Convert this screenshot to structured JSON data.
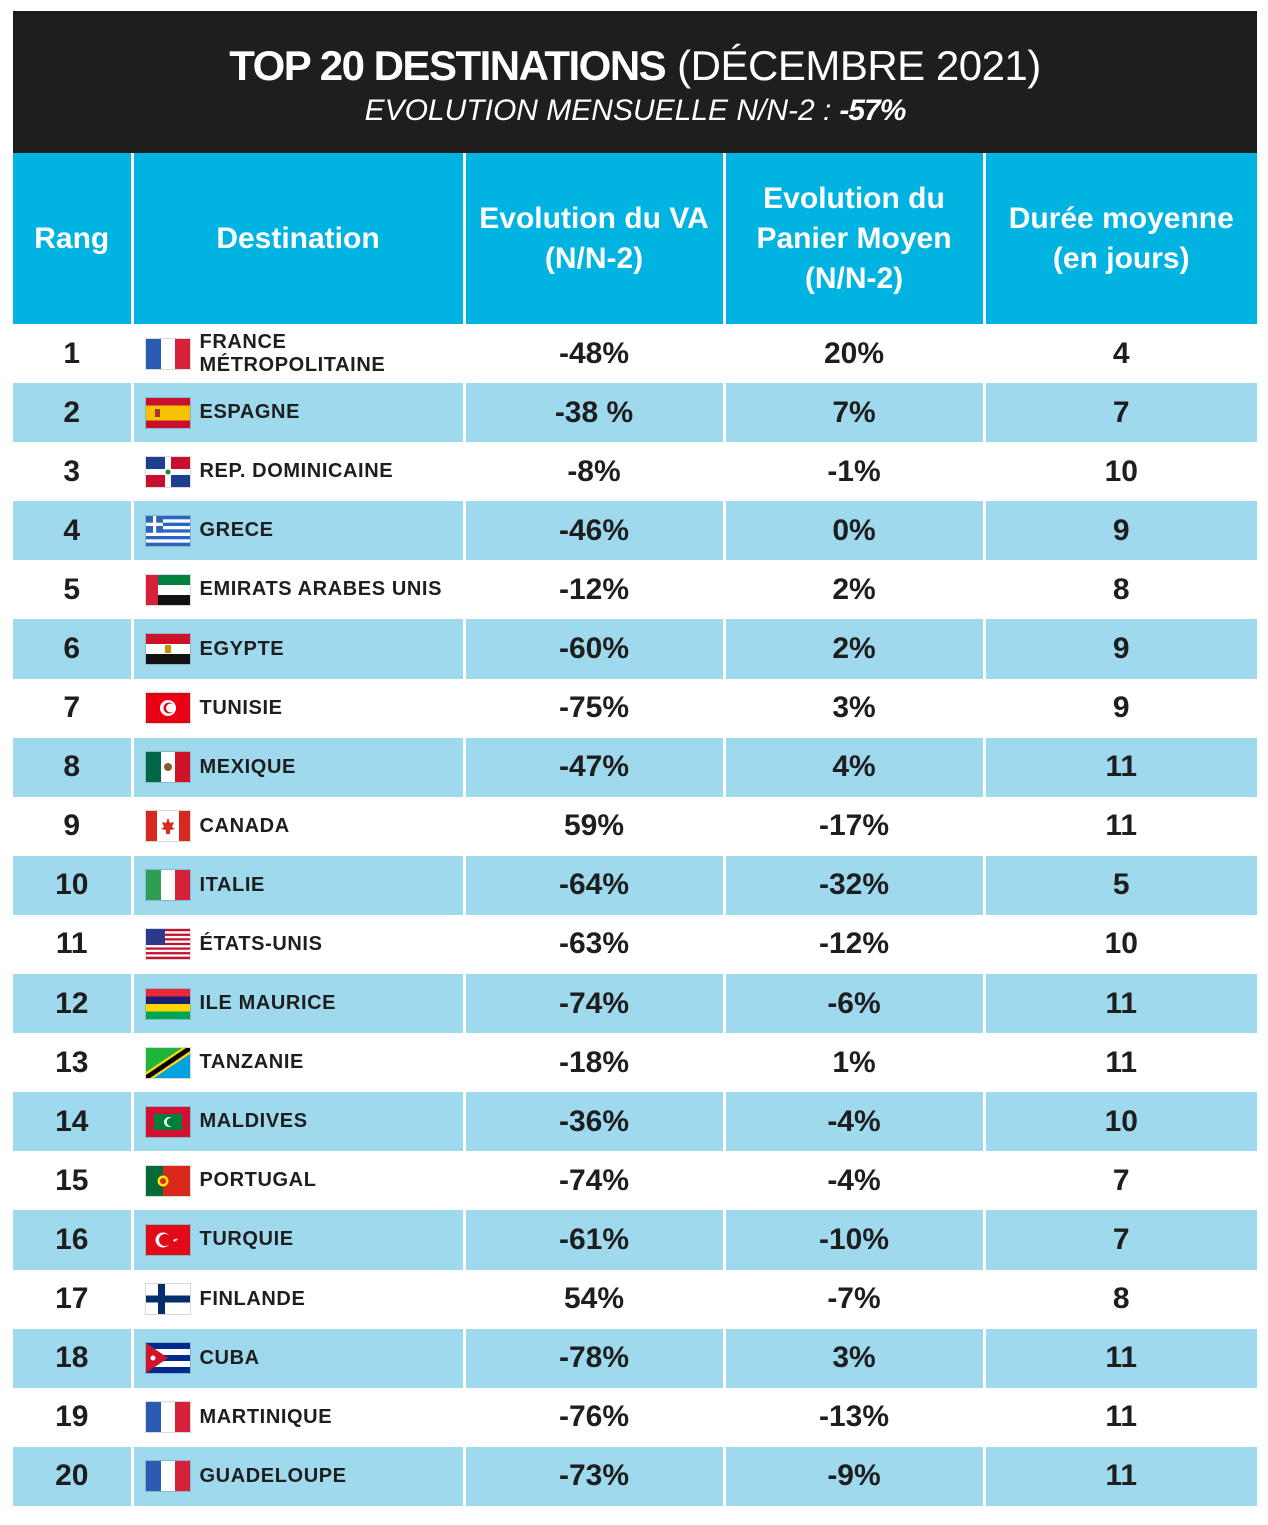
{
  "header": {
    "title_bold": "TOP 20 DESTINATIONS",
    "title_light": "(DÉCEMBRE 2021)",
    "subtitle_label": "EVOLUTION MENSUELLE N/N-2 :",
    "subtitle_value": "-57%"
  },
  "chart_data": {
    "type": "table",
    "columns": [
      "Rang",
      "Destination",
      "Evolution du VA (N/N-2)",
      "Evolution du Panier Moyen (N/N-2)",
      "Durée moyenne (en jours)"
    ],
    "rows": [
      {
        "rank": "1",
        "destination": "FRANCE MÉTROPOLITAINE",
        "flag": "france-flag-icon",
        "va": "-48%",
        "panier": "20%",
        "duree": "4"
      },
      {
        "rank": "2",
        "destination": "ESPAGNE",
        "flag": "spain-flag-icon",
        "va": "-38 %",
        "panier": "7%",
        "duree": "7"
      },
      {
        "rank": "3",
        "destination": "REP. DOMINICAINE",
        "flag": "dominican-republic-flag-icon",
        "va": "-8%",
        "panier": "-1%",
        "duree": "10"
      },
      {
        "rank": "4",
        "destination": "GRECE",
        "flag": "greece-flag-icon",
        "va": "-46%",
        "panier": "0%",
        "duree": "9"
      },
      {
        "rank": "5",
        "destination": "EMIRATS ARABES UNIS",
        "flag": "uae-flag-icon",
        "va": "-12%",
        "panier": "2%",
        "duree": "8"
      },
      {
        "rank": "6",
        "destination": "EGYPTE",
        "flag": "egypt-flag-icon",
        "va": "-60%",
        "panier": "2%",
        "duree": "9"
      },
      {
        "rank": "7",
        "destination": "TUNISIE",
        "flag": "tunisia-flag-icon",
        "va": "-75%",
        "panier": "3%",
        "duree": "9"
      },
      {
        "rank": "8",
        "destination": "MEXIQUE",
        "flag": "mexico-flag-icon",
        "va": "-47%",
        "panier": "4%",
        "duree": "11"
      },
      {
        "rank": "9",
        "destination": "CANADA",
        "flag": "canada-flag-icon",
        "va": "59%",
        "panier": "-17%",
        "duree": "11"
      },
      {
        "rank": "10",
        "destination": "ITALIE",
        "flag": "italy-flag-icon",
        "va": "-64%",
        "panier": "-32%",
        "duree": "5"
      },
      {
        "rank": "11",
        "destination": "ÉTATS-UNIS",
        "flag": "usa-flag-icon",
        "va": "-63%",
        "panier": "-12%",
        "duree": "10"
      },
      {
        "rank": "12",
        "destination": "ILE MAURICE",
        "flag": "mauritius-flag-icon",
        "va": "-74%",
        "panier": "-6%",
        "duree": "11"
      },
      {
        "rank": "13",
        "destination": "TANZANIE",
        "flag": "tanzania-flag-icon",
        "va": "-18%",
        "panier": "1%",
        "duree": "11"
      },
      {
        "rank": "14",
        "destination": "MALDIVES",
        "flag": "maldives-flag-icon",
        "va": "-36%",
        "panier": "-4%",
        "duree": "10"
      },
      {
        "rank": "15",
        "destination": "PORTUGAL",
        "flag": "portugal-flag-icon",
        "va": "-74%",
        "panier": "-4%",
        "duree": "7"
      },
      {
        "rank": "16",
        "destination": "TURQUIE",
        "flag": "turkey-flag-icon",
        "va": "-61%",
        "panier": "-10%",
        "duree": "7"
      },
      {
        "rank": "17",
        "destination": "FINLANDE",
        "flag": "finland-flag-icon",
        "va": "54%",
        "panier": "-7%",
        "duree": "8"
      },
      {
        "rank": "18",
        "destination": "CUBA",
        "flag": "cuba-flag-icon",
        "va": "-78%",
        "panier": "3%",
        "duree": "11"
      },
      {
        "rank": "19",
        "destination": "MARTINIQUE",
        "flag": "france-flag-icon",
        "va": "-76%",
        "panier": "-13%",
        "duree": "11"
      },
      {
        "rank": "20",
        "destination": "GUADELOUPE",
        "flag": "france-flag-icon",
        "va": "-73%",
        "panier": "-9%",
        "duree": "11"
      }
    ]
  },
  "colors": {
    "header_bg": "#1e1e1f",
    "column_header_bg": "#00b3e1",
    "stripe": "#9ed9ee",
    "text": "#1e1e1f"
  }
}
